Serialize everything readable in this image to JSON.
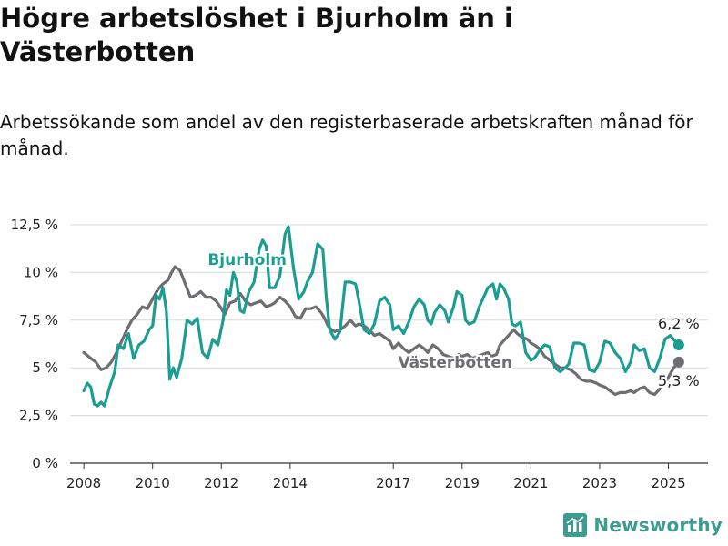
{
  "header": {
    "title": "Högre arbetslöshet i Bjurholm än i Västerbotten",
    "subtitle": "Arbetssökande som andel av den registerbaserade arbetskraften månad för månad."
  },
  "brand": {
    "name": "Newsworthy",
    "icon": "bar-chart-logo-icon",
    "color": "#3b9c8f"
  },
  "chart_data": {
    "type": "line",
    "title": "Högre arbetslöshet i Bjurholm än i Västerbotten",
    "subtitle": "Arbetssökande som andel av den registerbaserade arbetskraften månad för månad.",
    "xlabel": "",
    "ylabel": "",
    "ylim": [
      0,
      12.5
    ],
    "xlim": [
      2007.6,
      2026.15
    ],
    "grid": "horizontal",
    "legend": "direct labels on lines",
    "y_ticks": [
      {
        "value": 0,
        "label": "0 %"
      },
      {
        "value": 2.5,
        "label": "2,5 %"
      },
      {
        "value": 5,
        "label": "5 %"
      },
      {
        "value": 7.5,
        "label": "7,5 %"
      },
      {
        "value": 10,
        "label": "10 %"
      },
      {
        "value": 12.5,
        "label": "12,5 %"
      }
    ],
    "x_ticks": [
      {
        "value": 2008,
        "label": "2008"
      },
      {
        "value": 2010,
        "label": "2010"
      },
      {
        "value": 2012,
        "label": "2012"
      },
      {
        "value": 2014,
        "label": "2014"
      },
      {
        "value": 2017,
        "label": "2017"
      },
      {
        "value": 2019,
        "label": "2019"
      },
      {
        "value": 2021,
        "label": "2021"
      },
      {
        "value": 2023,
        "label": "2023"
      },
      {
        "value": 2025,
        "label": "2025"
      }
    ],
    "series": [
      {
        "name": "Västerbotten",
        "color": "#6d6d72",
        "label": {
          "text": "Västerbotten",
          "at": [
            2018.8,
            5.0
          ]
        },
        "end": {
          "x": 2025.3,
          "y": 5.3,
          "label": "5,3 %"
        },
        "points": [
          [
            2008.0,
            5.8
          ],
          [
            2008.2,
            5.5
          ],
          [
            2008.35,
            5.3
          ],
          [
            2008.5,
            4.9
          ],
          [
            2008.65,
            5.0
          ],
          [
            2008.8,
            5.3
          ],
          [
            2008.95,
            5.8
          ],
          [
            2009.1,
            6.4
          ],
          [
            2009.25,
            7.0
          ],
          [
            2009.4,
            7.5
          ],
          [
            2009.55,
            7.8
          ],
          [
            2009.7,
            8.2
          ],
          [
            2009.85,
            8.1
          ],
          [
            2010.0,
            8.6
          ],
          [
            2010.15,
            9.1
          ],
          [
            2010.3,
            9.4
          ],
          [
            2010.45,
            9.6
          ],
          [
            2010.55,
            10.0
          ],
          [
            2010.65,
            10.3
          ],
          [
            2010.8,
            10.1
          ],
          [
            2010.95,
            9.4
          ],
          [
            2011.1,
            8.7
          ],
          [
            2011.25,
            8.8
          ],
          [
            2011.4,
            9.0
          ],
          [
            2011.55,
            8.7
          ],
          [
            2011.7,
            8.7
          ],
          [
            2011.85,
            8.5
          ],
          [
            2012.0,
            8.1
          ],
          [
            2012.1,
            7.8
          ],
          [
            2012.25,
            8.4
          ],
          [
            2012.4,
            8.5
          ],
          [
            2012.55,
            8.9
          ],
          [
            2012.7,
            8.5
          ],
          [
            2012.85,
            8.3
          ],
          [
            2013.0,
            8.4
          ],
          [
            2013.15,
            8.5
          ],
          [
            2013.3,
            8.2
          ],
          [
            2013.45,
            8.3
          ],
          [
            2013.55,
            8.4
          ],
          [
            2013.7,
            8.7
          ],
          [
            2013.85,
            8.5
          ],
          [
            2014.0,
            8.2
          ],
          [
            2014.15,
            7.7
          ],
          [
            2014.3,
            7.6
          ],
          [
            2014.45,
            8.1
          ],
          [
            2014.6,
            8.1
          ],
          [
            2014.75,
            8.2
          ],
          [
            2014.9,
            7.9
          ],
          [
            2015.0,
            7.6
          ],
          [
            2015.1,
            7.2
          ],
          [
            2015.2,
            7.0
          ],
          [
            2015.3,
            6.9
          ],
          [
            2015.45,
            7.0
          ],
          [
            2015.6,
            7.2
          ],
          [
            2015.75,
            7.5
          ],
          [
            2015.9,
            7.2
          ],
          [
            2016.0,
            7.3
          ],
          [
            2016.15,
            7.2
          ],
          [
            2016.3,
            7.0
          ],
          [
            2016.45,
            6.7
          ],
          [
            2016.6,
            6.8
          ],
          [
            2016.75,
            6.6
          ],
          [
            2016.9,
            6.4
          ],
          [
            2017.0,
            6.0
          ],
          [
            2017.15,
            6.3
          ],
          [
            2017.3,
            6.0
          ],
          [
            2017.45,
            5.8
          ],
          [
            2017.6,
            6.0
          ],
          [
            2017.75,
            6.2
          ],
          [
            2017.9,
            6.0
          ],
          [
            2018.0,
            5.8
          ],
          [
            2018.15,
            6.2
          ],
          [
            2018.3,
            6.0
          ],
          [
            2018.45,
            5.7
          ],
          [
            2018.6,
            5.6
          ],
          [
            2018.75,
            5.5
          ],
          [
            2018.9,
            5.7
          ],
          [
            2019.0,
            5.6
          ],
          [
            2019.15,
            5.7
          ],
          [
            2019.3,
            5.5
          ],
          [
            2019.45,
            5.6
          ],
          [
            2019.6,
            5.7
          ],
          [
            2019.75,
            5.8
          ],
          [
            2019.85,
            5.6
          ],
          [
            2020.0,
            5.7
          ],
          [
            2020.1,
            6.2
          ],
          [
            2020.25,
            6.5
          ],
          [
            2020.4,
            6.8
          ],
          [
            2020.5,
            7.0
          ],
          [
            2020.6,
            6.8
          ],
          [
            2020.75,
            6.6
          ],
          [
            2020.9,
            6.5
          ],
          [
            2021.0,
            6.3
          ],
          [
            2021.1,
            6.2
          ],
          [
            2021.25,
            6.0
          ],
          [
            2021.4,
            5.6
          ],
          [
            2021.55,
            5.4
          ],
          [
            2021.7,
            5.2
          ],
          [
            2021.85,
            5.0
          ],
          [
            2022.0,
            5.0
          ],
          [
            2022.15,
            4.9
          ],
          [
            2022.3,
            4.7
          ],
          [
            2022.45,
            4.4
          ],
          [
            2022.6,
            4.3
          ],
          [
            2022.75,
            4.3
          ],
          [
            2022.9,
            4.2
          ],
          [
            2023.0,
            4.1
          ],
          [
            2023.15,
            4.0
          ],
          [
            2023.3,
            3.8
          ],
          [
            2023.45,
            3.6
          ],
          [
            2023.6,
            3.7
          ],
          [
            2023.75,
            3.7
          ],
          [
            2023.9,
            3.8
          ],
          [
            2024.0,
            3.7
          ],
          [
            2024.15,
            3.9
          ],
          [
            2024.3,
            4.0
          ],
          [
            2024.45,
            3.7
          ],
          [
            2024.6,
            3.6
          ],
          [
            2024.75,
            3.9
          ],
          [
            2024.9,
            4.2
          ],
          [
            2025.0,
            4.5
          ],
          [
            2025.15,
            5.0
          ],
          [
            2025.3,
            5.3
          ]
        ]
      },
      {
        "name": "Bjurholm",
        "color": "#1c9d91",
        "label": {
          "text": "Bjurholm",
          "at": [
            2012.75,
            10.4
          ]
        },
        "end": {
          "x": 2025.3,
          "y": 6.2,
          "label": "6,2 %"
        },
        "points": [
          [
            2008.0,
            3.8
          ],
          [
            2008.1,
            4.2
          ],
          [
            2008.2,
            4.0
          ],
          [
            2008.3,
            3.1
          ],
          [
            2008.4,
            3.0
          ],
          [
            2008.5,
            3.2
          ],
          [
            2008.6,
            3.0
          ],
          [
            2008.75,
            4.0
          ],
          [
            2008.9,
            4.8
          ],
          [
            2009.0,
            6.2
          ],
          [
            2009.15,
            6.0
          ],
          [
            2009.3,
            6.8
          ],
          [
            2009.45,
            5.5
          ],
          [
            2009.6,
            6.2
          ],
          [
            2009.75,
            6.4
          ],
          [
            2009.9,
            7.0
          ],
          [
            2010.0,
            7.2
          ],
          [
            2010.1,
            8.8
          ],
          [
            2010.2,
            8.6
          ],
          [
            2010.3,
            9.2
          ],
          [
            2010.4,
            8.0
          ],
          [
            2010.5,
            4.4
          ],
          [
            2010.6,
            5.0
          ],
          [
            2010.7,
            4.5
          ],
          [
            2010.85,
            5.5
          ],
          [
            2011.0,
            7.5
          ],
          [
            2011.15,
            7.3
          ],
          [
            2011.3,
            7.6
          ],
          [
            2011.45,
            5.8
          ],
          [
            2011.6,
            5.5
          ],
          [
            2011.75,
            6.5
          ],
          [
            2011.9,
            6.2
          ],
          [
            2012.05,
            7.5
          ],
          [
            2012.15,
            9.1
          ],
          [
            2012.25,
            8.8
          ],
          [
            2012.35,
            10.0
          ],
          [
            2012.45,
            9.5
          ],
          [
            2012.55,
            8.0
          ],
          [
            2012.65,
            7.9
          ],
          [
            2012.8,
            9.0
          ],
          [
            2012.95,
            9.5
          ],
          [
            2013.1,
            11.2
          ],
          [
            2013.2,
            11.7
          ],
          [
            2013.3,
            11.4
          ],
          [
            2013.4,
            9.2
          ],
          [
            2013.55,
            9.2
          ],
          [
            2013.7,
            9.8
          ],
          [
            2013.85,
            12.0
          ],
          [
            2013.95,
            12.4
          ],
          [
            2014.1,
            10.2
          ],
          [
            2014.25,
            8.6
          ],
          [
            2014.4,
            9.0
          ],
          [
            2014.5,
            9.5
          ],
          [
            2014.65,
            10.0
          ],
          [
            2014.8,
            11.5
          ],
          [
            2014.95,
            11.2
          ],
          [
            2015.05,
            8.7
          ],
          [
            2015.15,
            7.0
          ],
          [
            2015.3,
            6.5
          ],
          [
            2015.45,
            6.9
          ],
          [
            2015.6,
            9.5
          ],
          [
            2015.75,
            9.5
          ],
          [
            2015.9,
            9.4
          ],
          [
            2016.0,
            8.5
          ],
          [
            2016.15,
            7.0
          ],
          [
            2016.3,
            6.8
          ],
          [
            2016.45,
            7.3
          ],
          [
            2016.6,
            8.5
          ],
          [
            2016.75,
            8.7
          ],
          [
            2016.9,
            8.3
          ],
          [
            2017.0,
            7.0
          ],
          [
            2017.15,
            7.2
          ],
          [
            2017.3,
            6.8
          ],
          [
            2017.45,
            7.4
          ],
          [
            2017.6,
            8.2
          ],
          [
            2017.75,
            8.6
          ],
          [
            2017.9,
            8.3
          ],
          [
            2018.0,
            7.5
          ],
          [
            2018.1,
            7.3
          ],
          [
            2018.2,
            7.9
          ],
          [
            2018.35,
            8.3
          ],
          [
            2018.5,
            8.0
          ],
          [
            2018.6,
            7.4
          ],
          [
            2018.75,
            8.2
          ],
          [
            2018.85,
            9.0
          ],
          [
            2019.0,
            8.8
          ],
          [
            2019.1,
            7.5
          ],
          [
            2019.2,
            7.3
          ],
          [
            2019.35,
            7.4
          ],
          [
            2019.5,
            8.2
          ],
          [
            2019.65,
            8.8
          ],
          [
            2019.75,
            9.2
          ],
          [
            2019.9,
            9.4
          ],
          [
            2020.0,
            8.6
          ],
          [
            2020.1,
            9.4
          ],
          [
            2020.2,
            9.2
          ],
          [
            2020.35,
            8.6
          ],
          [
            2020.45,
            7.3
          ],
          [
            2020.55,
            7.2
          ],
          [
            2020.7,
            7.4
          ],
          [
            2020.85,
            5.8
          ],
          [
            2021.0,
            5.4
          ],
          [
            2021.1,
            5.5
          ],
          [
            2021.25,
            5.9
          ],
          [
            2021.4,
            6.2
          ],
          [
            2021.55,
            6.1
          ],
          [
            2021.7,
            5.0
          ],
          [
            2021.85,
            4.8
          ],
          [
            2022.0,
            5.0
          ],
          [
            2022.1,
            5.2
          ],
          [
            2022.25,
            6.3
          ],
          [
            2022.4,
            6.3
          ],
          [
            2022.55,
            6.2
          ],
          [
            2022.7,
            4.9
          ],
          [
            2022.85,
            4.8
          ],
          [
            2023.0,
            5.3
          ],
          [
            2023.15,
            6.4
          ],
          [
            2023.3,
            6.3
          ],
          [
            2023.45,
            5.8
          ],
          [
            2023.6,
            5.5
          ],
          [
            2023.75,
            4.8
          ],
          [
            2023.9,
            5.3
          ],
          [
            2024.0,
            6.2
          ],
          [
            2024.15,
            5.9
          ],
          [
            2024.3,
            6.0
          ],
          [
            2024.45,
            5.0
          ],
          [
            2024.6,
            4.8
          ],
          [
            2024.75,
            5.5
          ],
          [
            2024.9,
            6.5
          ],
          [
            2025.05,
            6.7
          ],
          [
            2025.2,
            6.4
          ],
          [
            2025.3,
            6.2
          ]
        ]
      }
    ]
  }
}
